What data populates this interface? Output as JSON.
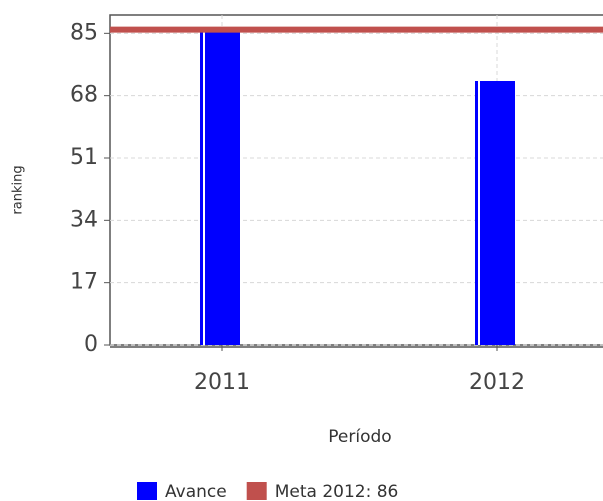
{
  "chart_data": {
    "type": "bar",
    "categories": [
      "2011",
      "2012"
    ],
    "series": [
      {
        "name": "Avance",
        "color": "#0000ff",
        "values": [
          86,
          72
        ]
      }
    ],
    "target": {
      "name": "Meta 2012: 86",
      "value": 86,
      "color": "#c0504d"
    },
    "x_label": "Período",
    "y_label": "ranking",
    "ylim": [
      0,
      90
    ],
    "yticks": [
      0,
      17,
      34,
      51,
      68,
      85
    ],
    "grid": true
  }
}
